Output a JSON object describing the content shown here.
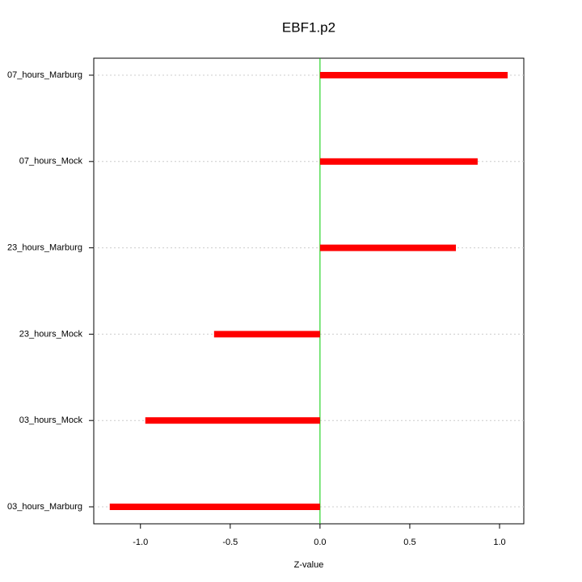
{
  "chart_data": {
    "type": "hbar",
    "title": "EBF1.p2",
    "x_label": "Z-value",
    "categories": [
      "07_hours_Marburg",
      "07_hours_Mock",
      "23_hours_Marburg",
      "23_hours_Mock",
      "03_hours_Mock",
      "03_hours_Marburg"
    ],
    "values": [
      1.045,
      0.878,
      0.757,
      -0.59,
      -0.973,
      -1.171
    ],
    "color": "#ff0000",
    "zero_line_color": "#00cc00",
    "xlim": [
      -1.26,
      1.135
    ],
    "xticks": [
      {
        "value": -1,
        "label": "-1.0"
      },
      -0.5,
      {
        "value": 0,
        "label": "0.0"
      },
      0.5,
      {
        "value": 1,
        "label": "1.0"
      }
    ],
    "grid": true
  }
}
